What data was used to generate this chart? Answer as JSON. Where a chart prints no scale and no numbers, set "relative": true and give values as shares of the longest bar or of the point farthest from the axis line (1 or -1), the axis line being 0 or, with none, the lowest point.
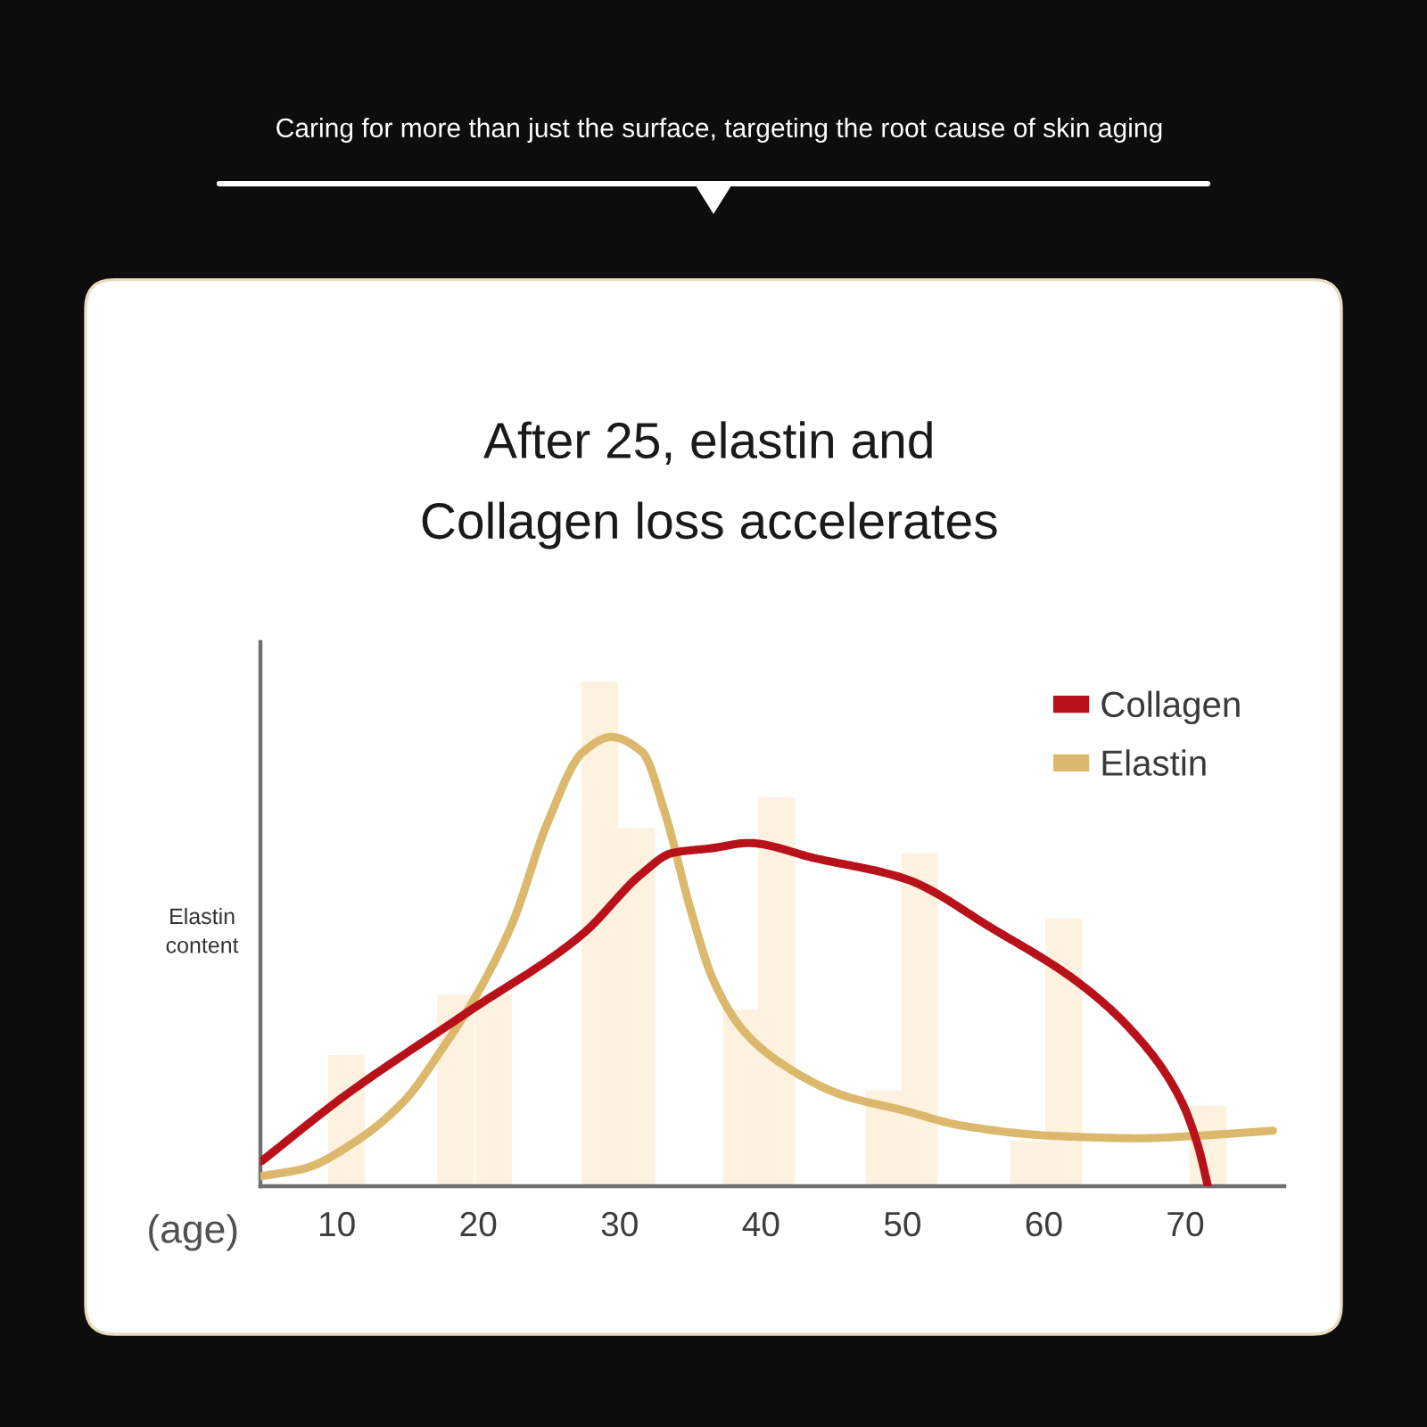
{
  "chart_data": {
    "type": "line",
    "title": "After 25, elastin and\nCollagen loss accelerates",
    "subtitle": "Caring for more than just the surface, targeting the root cause of skin aging",
    "xlabel": "(age)",
    "ylabel": "Elastin\ncontent",
    "relative": true,
    "xlim": [
      4.6,
      77
    ],
    "xticks": [
      10,
      20,
      30,
      40,
      50,
      60,
      70
    ],
    "tick_labels": "x",
    "legend": "top right",
    "line_style": "solid",
    "series": [
      {
        "type": "bar",
        "color": "#fdf1e0",
        "x": [
          10.7,
          18.4,
          21.1,
          28.6,
          31.2,
          38.6,
          41.1,
          48.7,
          51.2,
          58.9,
          61.4,
          71.6
        ],
        "values": [
          0.26,
          0.38,
          0.38,
          1.0,
          0.71,
          0.35,
          0.77,
          0.19,
          0.66,
          0.09,
          0.53,
          0.16
        ]
      },
      {
        "name": "Collagen",
        "color": "#b8111a",
        "x": [
          4.7,
          10.6,
          19.0,
          27.4,
          31.6,
          33.7,
          36.6,
          39.1,
          43.8,
          50.1,
          56.4,
          62.6,
          66.8,
          69.7,
          70.9,
          71.6
        ],
        "values": [
          0.05,
          0.18,
          0.34,
          0.5,
          0.62,
          0.66,
          0.67,
          0.68,
          0.65,
          0.61,
          0.51,
          0.4,
          0.29,
          0.17,
          0.08,
          0.0
        ]
      },
      {
        "name": "Elastin",
        "color": "#dbb86b",
        "x": [
          4.7,
          7.7,
          11.4,
          14.8,
          17.4,
          19.9,
          22.4,
          24.9,
          27.4,
          29.4,
          31.6,
          33.2,
          35.0,
          36.6,
          38.7,
          41.6,
          45.8,
          50.1,
          54.2,
          60.5,
          66.8,
          70.9,
          76.2
        ],
        "values": [
          0.02,
          0.035,
          0.09,
          0.17,
          0.27,
          0.38,
          0.52,
          0.72,
          0.86,
          0.89,
          0.86,
          0.74,
          0.55,
          0.41,
          0.31,
          0.24,
          0.18,
          0.15,
          0.12,
          0.1,
          0.095,
          0.1,
          0.11
        ]
      }
    ]
  }
}
